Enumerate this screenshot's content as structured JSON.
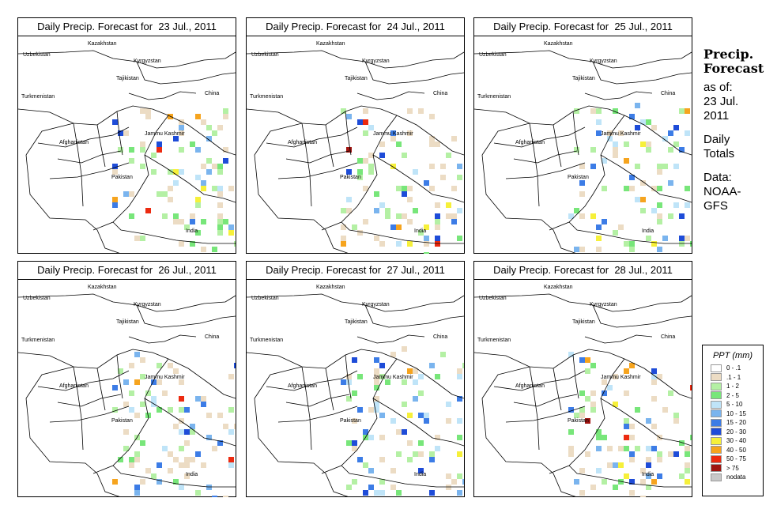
{
  "panels": [
    {
      "title": "Daily Precip. Forecast for  23 Jul., 2011"
    },
    {
      "title": "Daily Precip. Forecast for  24 Jul., 2011"
    },
    {
      "title": "Daily Precip. Forecast for  25 Jul., 2011"
    },
    {
      "title": "Daily Precip. Forecast for  26 Jul., 2011"
    },
    {
      "title": "Daily Precip. Forecast for  27 Jul., 2011"
    },
    {
      "title": "Daily Precip. Forecast for  28 Jul., 2011"
    }
  ],
  "map_labels": {
    "kazakhstan": "Kazakhstan",
    "uzbekistan": "Uzbekistan",
    "kyrgyzstan": "Kyrgyzstan",
    "tajikistan": "Tajikistan",
    "turkmenistan": "Turkmenistan",
    "china": "China",
    "afghanistan": "Afghanistan",
    "jammu_kashmir": "Jammu Kashmir",
    "pakistan": "Pakistan",
    "india": "India"
  },
  "side": {
    "title": "Precip.\nForecast",
    "asof": "as of:\n23 Jul.\n2011",
    "totals": "Daily\nTotals",
    "data": "Data:\nNOAA-\nGFS"
  },
  "legend": {
    "title": "PPT (mm)",
    "items": [
      {
        "label": "0 - .1",
        "color": "#ffffff"
      },
      {
        "label": ".1 - 1",
        "color": "#ecdcc4"
      },
      {
        "label": "1 - 2",
        "color": "#b4f0a4"
      },
      {
        "label": "2 - 5",
        "color": "#78e67a"
      },
      {
        "label": "5 - 10",
        "color": "#bfe4f8"
      },
      {
        "label": "10 - 15",
        "color": "#7ab4ee"
      },
      {
        "label": "15 - 20",
        "color": "#3c7ce6"
      },
      {
        "label": "20 - 30",
        "color": "#1e4cd8"
      },
      {
        "label": "30 - 40",
        "color": "#f6f03a"
      },
      {
        "label": "40 - 50",
        "color": "#f6a41e"
      },
      {
        "label": "50 - 75",
        "color": "#ec2a10"
      },
      {
        "label": "> 75",
        "color": "#a01410"
      },
      {
        "label": "nodata",
        "color": "#c8c8c8"
      }
    ]
  }
}
